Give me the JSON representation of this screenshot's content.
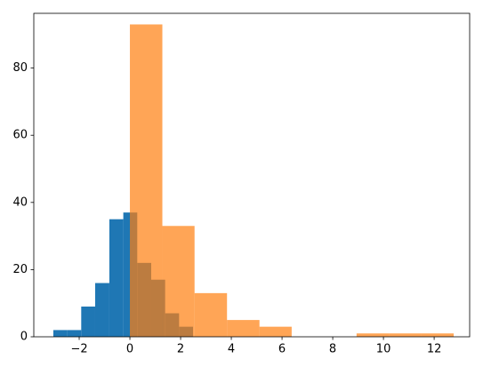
{
  "chart_data": {
    "type": "histogram",
    "series": [
      {
        "color": "#1f77b4",
        "opacity": 1,
        "bins": [
          -3.02,
          -2.47,
          -1.92,
          -1.37,
          -0.81,
          -0.26,
          0.29,
          0.84,
          1.39,
          1.94,
          2.49
        ],
        "values": [
          2,
          2,
          9,
          16,
          35,
          37,
          22,
          17,
          7,
          3
        ]
      },
      {
        "color": "#ff7f0e",
        "opacity": 0.7,
        "bins": [
          0.0,
          1.28,
          2.55,
          3.83,
          5.11,
          6.38,
          7.66,
          8.94,
          10.22,
          11.49,
          12.77
        ],
        "values": [
          93,
          33,
          13,
          5,
          3,
          0,
          0,
          1,
          1,
          1
        ]
      }
    ],
    "xlim": [
      -3.79,
      13.4
    ],
    "ylim": [
      0,
      96.3
    ],
    "xticks": [
      {
        "value": -2,
        "label": "−2"
      },
      0,
      2,
      4,
      6,
      8,
      10,
      12
    ],
    "yticks": [
      0,
      20,
      40,
      60,
      80
    ],
    "grid": false
  }
}
